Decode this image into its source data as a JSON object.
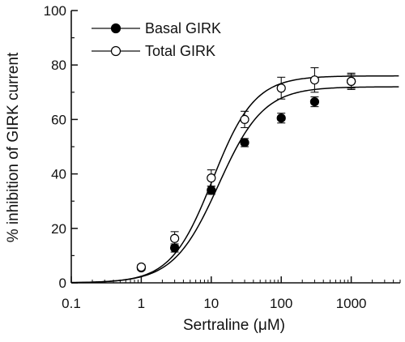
{
  "chart_data": {
    "type": "scatter",
    "xlabel": "Sertraline (μM)",
    "ylabel": "% inhibition of GIRK current",
    "x_scale": "log",
    "xlim": [
      0.1,
      5000
    ],
    "ylim": [
      0,
      100
    ],
    "x_ticks": [
      0.1,
      1,
      10,
      100,
      1000
    ],
    "x_tick_labels": [
      "0.1",
      "1",
      "10",
      "100",
      "1000"
    ],
    "y_ticks": [
      0,
      20,
      40,
      60,
      80,
      100
    ],
    "y_tick_labels": [
      "0",
      "20",
      "40",
      "60",
      "80",
      "100"
    ],
    "grid": false,
    "legend_position": "top-left",
    "series": [
      {
        "name": "Basal GIRK",
        "marker": "filled-circle",
        "color": "#000000",
        "x": [
          1,
          3,
          10,
          30,
          100,
          300,
          1000
        ],
        "y": [
          5.5,
          12.8,
          34,
          51.5,
          60.5,
          66.5,
          74
        ],
        "error": [
          0.8,
          1.5,
          1.5,
          1.5,
          1.8,
          1.8,
          2.5
        ],
        "fit": {
          "top": 72,
          "ec50": 12.7,
          "hill": 1.35
        }
      },
      {
        "name": "Total GIRK",
        "marker": "open-circle",
        "color": "#000000",
        "x": [
          1,
          3,
          10,
          30,
          100,
          300,
          1000
        ],
        "y": [
          5.8,
          16.3,
          38.5,
          60,
          71.5,
          74.5,
          74
        ],
        "error": [
          0.8,
          2.5,
          3,
          3,
          4,
          4.5,
          3
        ],
        "fit": {
          "top": 76,
          "ec50": 10.5,
          "hill": 1.45
        }
      }
    ]
  }
}
